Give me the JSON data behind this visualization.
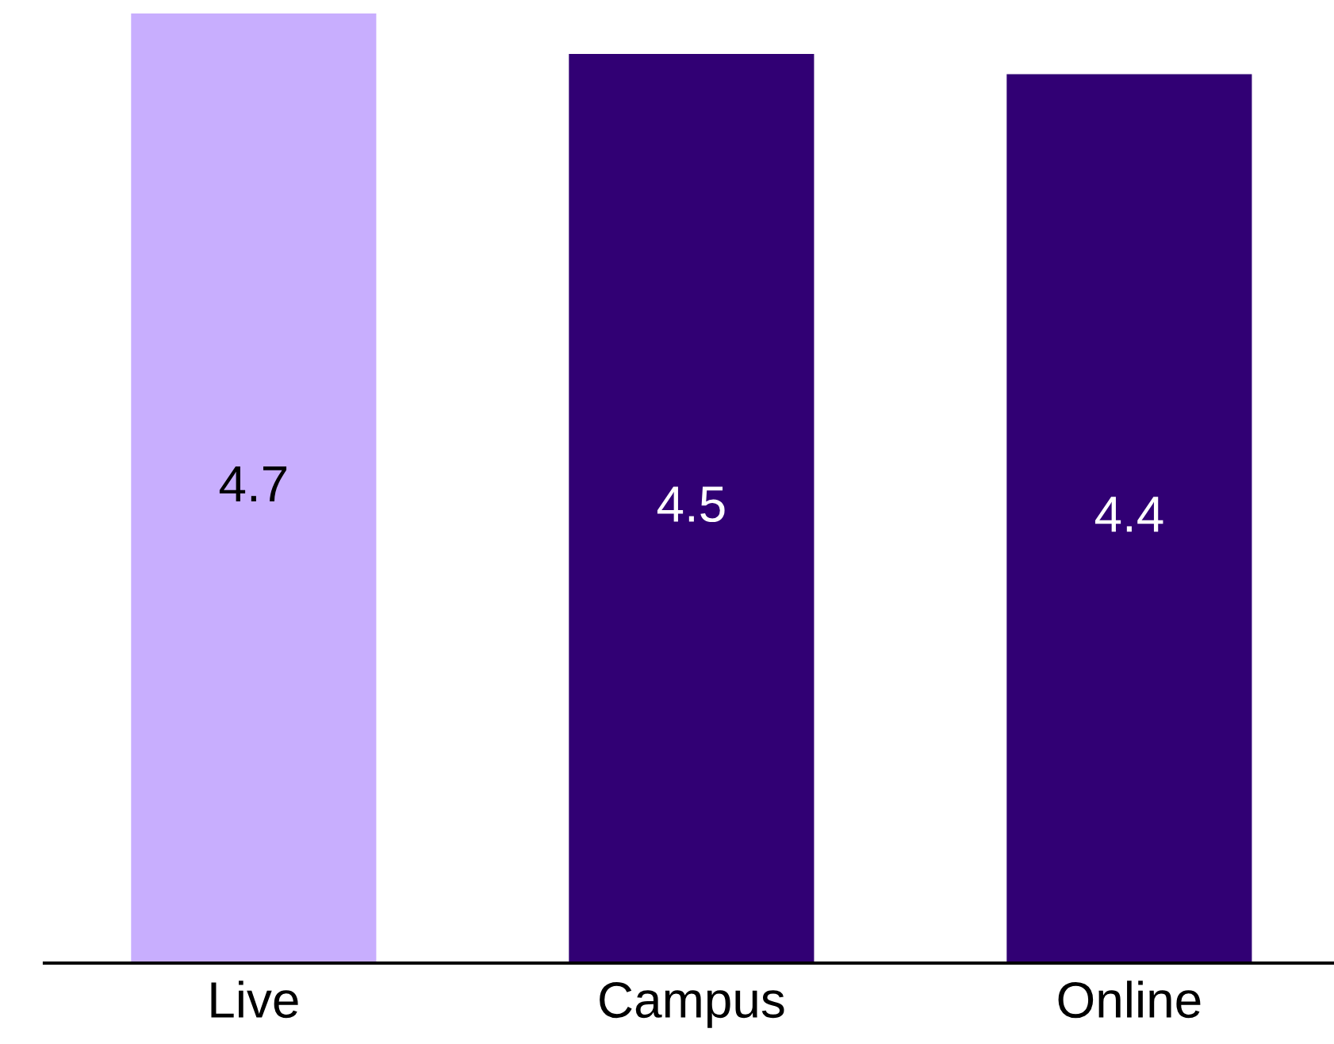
{
  "chart_data": {
    "type": "bar",
    "categories": [
      "Live",
      "Campus",
      "Online"
    ],
    "values": [
      4.7,
      4.5,
      4.4
    ],
    "colors": [
      "#c8aefe",
      "#310074",
      "#310074"
    ],
    "data_labels": true
  }
}
